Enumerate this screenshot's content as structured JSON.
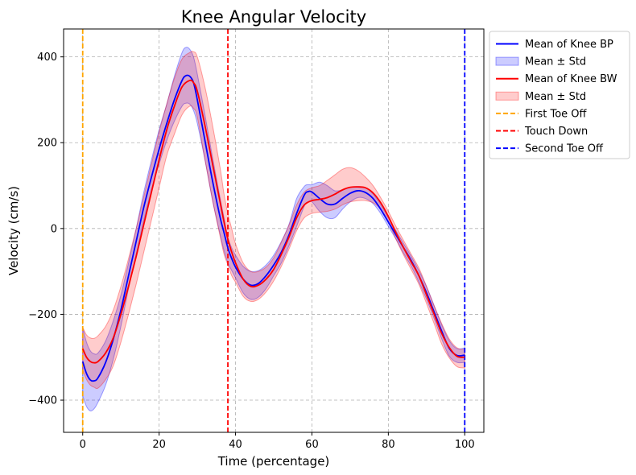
{
  "chart_data": {
    "type": "line",
    "title": "Knee Angular Velocity",
    "xlabel": "Time (percentage)",
    "ylabel": "Velocity (cm/s)",
    "xlim": [
      -5,
      105
    ],
    "ylim": [
      -475,
      465
    ],
    "xticks": [
      0,
      20,
      40,
      60,
      80,
      100
    ],
    "yticks": [
      -400,
      -200,
      0,
      200,
      400
    ],
    "xtick_labels": [
      "0",
      "20",
      "40",
      "60",
      "80",
      "100"
    ],
    "ytick_labels": [
      "−400",
      "−200",
      "0",
      "200",
      "400"
    ],
    "grid": true,
    "legend_position": "outside-top-right",
    "series": [
      {
        "name": "Mean of Knee BP",
        "color": "#0000ff",
        "band_label": "Mean ± Std",
        "x": [
          0,
          1,
          2,
          3,
          4,
          6,
          8,
          10,
          12,
          14,
          16,
          18,
          20,
          22,
          24,
          26,
          27,
          28,
          29,
          30,
          32,
          34,
          36,
          37,
          38,
          39,
          40,
          42,
          44,
          46,
          48,
          50,
          52,
          54,
          56,
          58,
          59,
          60,
          62,
          64,
          66,
          68,
          70,
          72,
          74,
          76,
          78,
          80,
          82,
          84,
          86,
          88,
          90,
          92,
          94,
          96,
          98,
          100
        ],
        "mean": [
          -310,
          -338,
          -353,
          -355,
          -348,
          -312,
          -258,
          -190,
          -110,
          -30,
          50,
          120,
          185,
          245,
          300,
          345,
          356,
          355,
          340,
          300,
          205,
          110,
          25,
          -10,
          -45,
          -70,
          -90,
          -118,
          -132,
          -128,
          -110,
          -85,
          -55,
          -15,
          35,
          78,
          86,
          85,
          70,
          57,
          57,
          70,
          82,
          88,
          84,
          70,
          45,
          15,
          -15,
          -45,
          -75,
          -110,
          -150,
          -195,
          -240,
          -280,
          -296,
          -295
        ],
        "upper": [
          -230,
          -265,
          -285,
          -292,
          -290,
          -262,
          -215,
          -155,
          -80,
          0,
          85,
          160,
          230,
          290,
          355,
          410,
          422,
          418,
          400,
          360,
          265,
          165,
          70,
          25,
          -20,
          -45,
          -62,
          -88,
          -100,
          -98,
          -85,
          -62,
          -30,
          10,
          70,
          98,
          102,
          102,
          108,
          100,
          88,
          90,
          96,
          98,
          95,
          80,
          55,
          25,
          -5,
          -35,
          -65,
          -98,
          -135,
          -180,
          -225,
          -262,
          -280,
          -278
        ],
        "lower": [
          -390,
          -415,
          -425,
          -420,
          -405,
          -365,
          -305,
          -228,
          -140,
          -60,
          20,
          90,
          150,
          205,
          250,
          285,
          292,
          290,
          275,
          245,
          160,
          65,
          -15,
          -52,
          -80,
          -98,
          -115,
          -150,
          -165,
          -160,
          -140,
          -110,
          -80,
          -40,
          5,
          52,
          62,
          62,
          40,
          25,
          25,
          45,
          62,
          72,
          70,
          58,
          35,
          5,
          -25,
          -58,
          -88,
          -125,
          -165,
          -210,
          -258,
          -298,
          -312,
          -312
        ]
      },
      {
        "name": "Mean of Knee BW",
        "color": "#ff0000",
        "band_label": "Mean ± Std",
        "x": [
          0,
          1,
          2,
          3,
          4,
          6,
          8,
          10,
          12,
          14,
          16,
          18,
          20,
          22,
          24,
          26,
          28,
          29,
          30,
          32,
          34,
          36,
          37,
          38,
          39,
          40,
          42,
          44,
          46,
          48,
          50,
          52,
          54,
          56,
          58,
          60,
          62,
          64,
          66,
          68,
          70,
          72,
          74,
          76,
          78,
          80,
          82,
          84,
          86,
          88,
          90,
          92,
          94,
          96,
          98,
          100
        ],
        "mean": [
          -280,
          -300,
          -310,
          -313,
          -310,
          -290,
          -255,
          -200,
          -135,
          -65,
          10,
          85,
          160,
          230,
          285,
          330,
          345,
          340,
          320,
          240,
          150,
          60,
          15,
          -25,
          -55,
          -80,
          -118,
          -135,
          -132,
          -118,
          -95,
          -60,
          -20,
          25,
          55,
          65,
          68,
          72,
          80,
          90,
          96,
          97,
          95,
          83,
          60,
          28,
          -10,
          -45,
          -78,
          -110,
          -155,
          -200,
          -245,
          -278,
          -298,
          -300
        ],
        "upper": [
          -230,
          -248,
          -255,
          -256,
          -250,
          -228,
          -190,
          -135,
          -70,
          0,
          75,
          150,
          225,
          290,
          350,
          395,
          410,
          412,
          400,
          330,
          240,
          140,
          80,
          35,
          0,
          -35,
          -80,
          -100,
          -100,
          -90,
          -68,
          -32,
          8,
          55,
          85,
          95,
          100,
          112,
          125,
          138,
          142,
          135,
          120,
          100,
          72,
          40,
          5,
          -28,
          -60,
          -92,
          -135,
          -180,
          -222,
          -258,
          -278,
          -282
        ],
        "lower": [
          -330,
          -352,
          -365,
          -370,
          -372,
          -352,
          -320,
          -265,
          -200,
          -130,
          -55,
          20,
          95,
          170,
          220,
          265,
          285,
          280,
          260,
          160,
          65,
          -20,
          -60,
          -85,
          -110,
          -125,
          -158,
          -170,
          -165,
          -148,
          -122,
          -88,
          -48,
          -5,
          25,
          35,
          38,
          40,
          45,
          55,
          62,
          65,
          65,
          60,
          45,
          15,
          -25,
          -62,
          -96,
          -130,
          -175,
          -222,
          -270,
          -302,
          -322,
          -325
        ]
      }
    ],
    "vlines": [
      {
        "x": 0,
        "label": "First Toe Off",
        "color": "#ffa500"
      },
      {
        "x": 38,
        "label": "Touch Down",
        "color": "#ff0000"
      },
      {
        "x": 100,
        "label": "Second Toe Off",
        "color": "#0000ff"
      }
    ]
  }
}
